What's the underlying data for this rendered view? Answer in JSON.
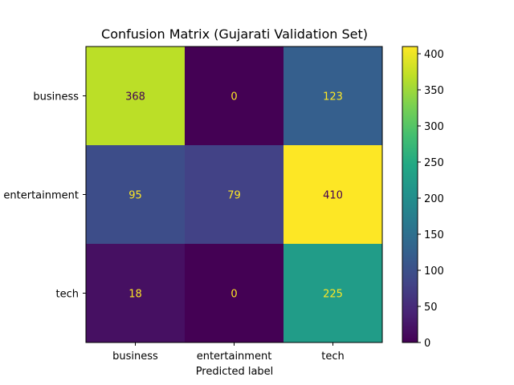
{
  "chart_data": {
    "type": "heatmap",
    "title": "Confusion Matrix (Gujarati Validation Set)",
    "xlabel": "Predicted label",
    "ylabel": "",
    "x_categories": [
      "business",
      "entertainment",
      "tech"
    ],
    "y_categories": [
      "business",
      "entertainment",
      "tech"
    ],
    "values": [
      [
        368,
        0,
        123
      ],
      [
        95,
        79,
        410
      ],
      [
        18,
        0,
        225
      ]
    ],
    "colormap": "viridis",
    "colorbar": {
      "range": [
        0,
        410
      ],
      "ticks": [
        0,
        50,
        100,
        150,
        200,
        250,
        300,
        350,
        400
      ]
    },
    "text_colors": {
      "on_dark": "#fde725",
      "on_light": "#440154"
    }
  }
}
